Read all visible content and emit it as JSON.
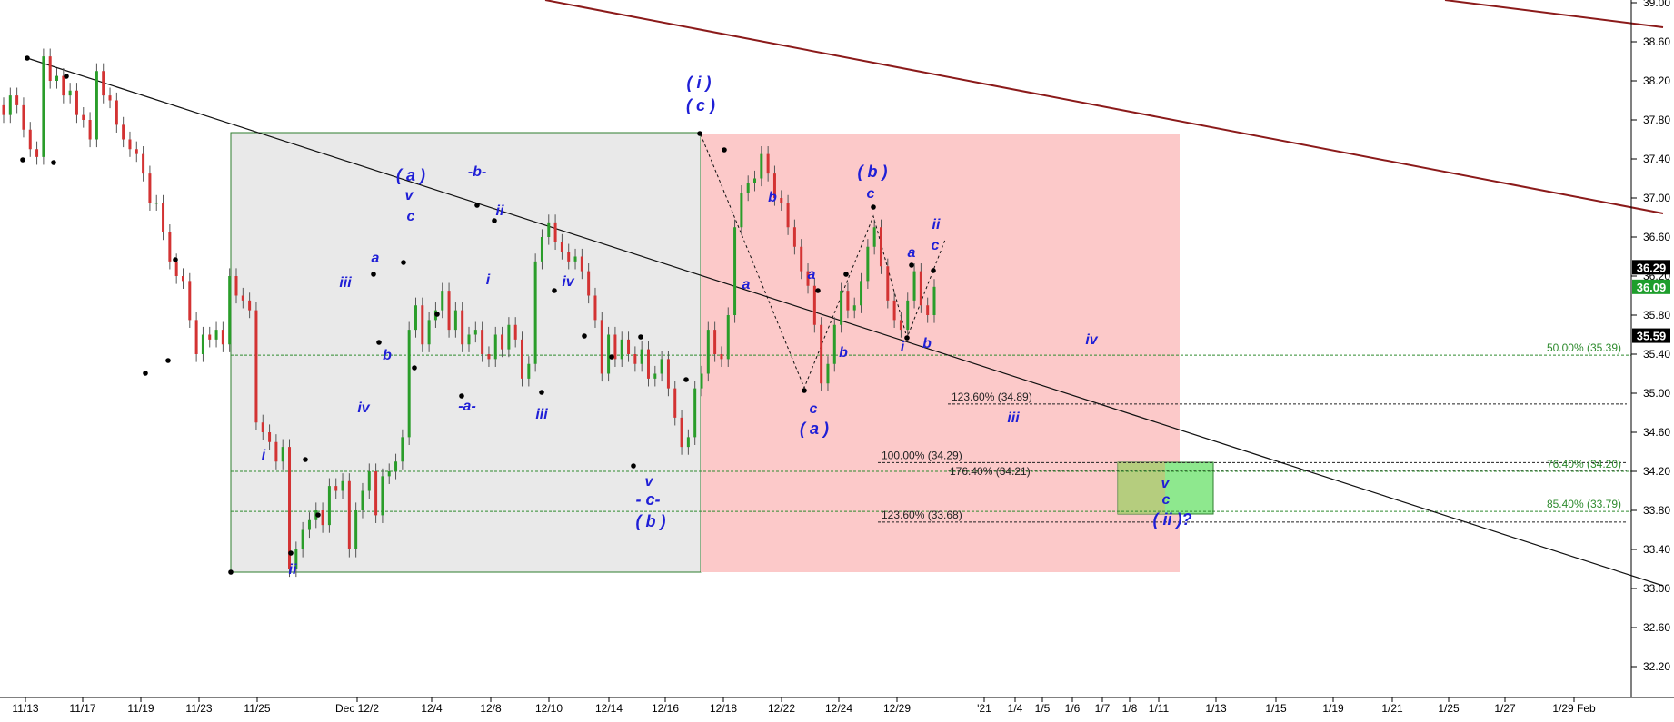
{
  "chart_data": {
    "type": "candlestick",
    "title": "",
    "xlabel": "",
    "ylabel": "",
    "ylim": [
      31.9,
      39.0
    ],
    "y_ticks": [
      "39.00",
      "38.60",
      "38.20",
      "37.80",
      "37.40",
      "37.00",
      "36.60",
      "36.20",
      "35.80",
      "35.40",
      "35.00",
      "34.60",
      "34.20",
      "33.80",
      "33.40",
      "33.00",
      "32.60",
      "32.20"
    ],
    "x_ticks": [
      "11/13",
      "11/17",
      "11/19",
      "11/23",
      "11/25",
      "Dec 12/2",
      "12/4",
      "12/8",
      "12/10",
      "12/14",
      "12/16",
      "12/18",
      "12/22",
      "12/24",
      "12/29",
      "'21",
      "1/4",
      "1/5",
      "1/6",
      "1/7",
      "1/8",
      "1/11",
      "1/13",
      "1/15",
      "1/19",
      "1/21",
      "1/25",
      "1/27",
      "1/29 Feb"
    ],
    "price_labels": [
      {
        "text": "36.29",
        "value": 36.29,
        "bg": "#000000"
      },
      {
        "text": "36.09",
        "value": 36.09,
        "bg": "#1e9e2c"
      },
      {
        "text": "35.59",
        "value": 35.59,
        "bg": "#000000"
      }
    ],
    "candles_close": [
      37.85,
      38.05,
      37.95,
      37.7,
      37.5,
      37.42,
      38.45,
      38.2,
      38.25,
      38.05,
      38.1,
      37.85,
      37.8,
      37.6,
      38.3,
      38.05,
      38.0,
      37.75,
      37.6,
      37.5,
      37.45,
      37.25,
      36.95,
      36.95,
      36.65,
      36.35,
      36.2,
      36.15,
      35.75,
      35.4,
      35.6,
      35.55,
      35.65,
      35.5,
      36.2,
      36.0,
      35.95,
      35.85,
      34.7,
      34.6,
      34.5,
      34.3,
      34.45,
      33.2,
      33.4,
      33.6,
      33.7,
      33.8,
      33.65,
      34.05,
      34.0,
      34.1,
      33.4,
      33.8,
      34.0,
      34.2,
      33.75,
      34.15,
      34.2,
      34.3,
      34.55,
      35.65,
      35.9,
      35.5,
      35.75,
      35.85,
      36.05,
      35.65,
      35.85,
      35.5,
      35.6,
      35.65,
      35.4,
      35.35,
      35.6,
      35.45,
      35.7,
      35.55,
      35.15,
      35.3,
      36.35,
      36.6,
      36.75,
      36.55,
      36.45,
      36.35,
      36.4,
      36.25,
      36.0,
      35.75,
      35.2,
      35.6,
      35.35,
      35.55,
      35.4,
      35.3,
      35.45,
      35.15,
      35.2,
      35.35,
      35.05,
      34.75,
      34.45,
      34.55,
      35.05,
      35.2,
      35.65,
      35.4,
      35.35,
      35.8,
      36.7,
      37.05,
      37.15,
      37.2,
      37.45,
      37.25,
      37.0,
      36.95,
      36.7,
      36.5,
      36.25,
      36.1,
      35.7,
      35.1,
      35.3,
      35.7,
      36.05,
      35.85,
      35.9,
      36.15,
      36.5,
      36.7,
      36.3,
      35.95,
      35.75,
      35.65,
      35.95,
      36.25,
      35.9,
      35.8,
      36.09
    ],
    "waves": [
      {
        "text": "( i )",
        "size": 18
      },
      {
        "text": "( c )",
        "size": 18
      },
      {
        "text": "( a )",
        "size": 18
      },
      {
        "text": "v",
        "size": 16
      },
      {
        "text": "c",
        "size": 16
      },
      {
        "text": "-b-",
        "size": 16
      },
      {
        "text": "ii",
        "size": 16
      },
      {
        "text": "iii",
        "size": 16
      },
      {
        "text": "a",
        "size": 16
      },
      {
        "text": "b",
        "size": 16
      },
      {
        "text": "i",
        "size": 16
      },
      {
        "text": "iv",
        "size": 16
      },
      {
        "text": "-a-",
        "size": 16
      },
      {
        "text": "iv",
        "size": 16
      },
      {
        "text": "iii",
        "size": 16
      },
      {
        "text": "v",
        "size": 16
      },
      {
        "text": "- c-",
        "size": 18
      },
      {
        "text": "( b )",
        "size": 18
      },
      {
        "text": "i",
        "size": 16
      },
      {
        "text": "ii",
        "size": 16
      },
      {
        "text": "b",
        "size": 16
      },
      {
        "text": "a",
        "size": 16
      },
      {
        "text": "a",
        "size": 16
      },
      {
        "text": "b",
        "size": 16
      },
      {
        "text": "c",
        "size": 16
      },
      {
        "text": "( a )",
        "size": 18
      },
      {
        "text": "( b )",
        "size": 18
      },
      {
        "text": "c",
        "size": 16
      },
      {
        "text": "a",
        "size": 16
      },
      {
        "text": "ii",
        "size": 16
      },
      {
        "text": "c",
        "size": 16
      },
      {
        "text": "i",
        "size": 16
      },
      {
        "text": "b",
        "size": 16
      },
      {
        "text": "iv",
        "size": 16
      },
      {
        "text": "iii",
        "size": 16
      },
      {
        "text": "v",
        "size": 16
      },
      {
        "text": "c",
        "size": 16
      },
      {
        "text": "( ii )?",
        "size": 18
      }
    ],
    "fib_levels": [
      {
        "text": "50.00% (35.39)",
        "value": 35.39,
        "color": "#2e8b2e"
      },
      {
        "text": "123.60% (34.89)",
        "value": 34.89,
        "color": "#222222"
      },
      {
        "text": "100.00% (34.29)",
        "value": 34.29,
        "color": "#222222"
      },
      {
        "text": "176.40% (34.21)",
        "value": 34.21,
        "color": "#222222"
      },
      {
        "text": "76.40% (34.20)",
        "value": 34.2,
        "color": "#2e8b2e"
      },
      {
        "text": "85.40% (33.79)",
        "value": 33.79,
        "color": "#2e8b2e"
      },
      {
        "text": "123.60% (33.68)",
        "value": 33.68,
        "color": "#222222"
      }
    ],
    "colors": {
      "up": "#2a9d2a",
      "down": "#d33333",
      "wave": "#1f1fd6",
      "trend_dark": "#8b1a1a",
      "grey_zone": "#e6e6e6",
      "red_zone": "#fbc9c9",
      "green_zone": "#7ee07e"
    }
  }
}
